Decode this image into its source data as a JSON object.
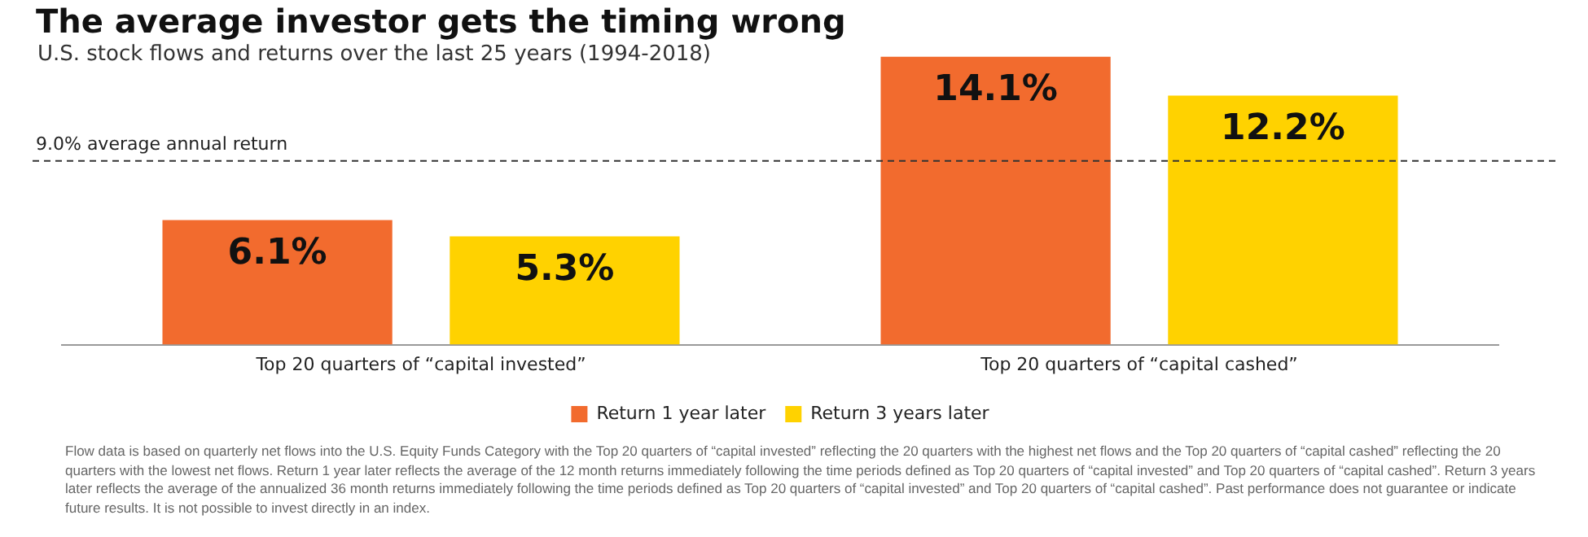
{
  "chart_data": {
    "type": "bar",
    "title": "The average investor gets the timing wrong",
    "subtitle": "U.S. stock flows and returns over the last 25 years (1994-2018)",
    "categories": [
      "Top 20 quarters of “capital invested”",
      "Top 20 quarters of “capital cashed”"
    ],
    "series": [
      {
        "name": "Return 1 year later",
        "color": "#f26b2e",
        "values": [
          6.1,
          14.1
        ],
        "value_labels": [
          "6.1%",
          "14.1%"
        ]
      },
      {
        "name": "Return 3 years later",
        "color": "#ffd200",
        "values": [
          5.3,
          12.2
        ],
        "value_labels": [
          "5.3%",
          "12.2%"
        ]
      }
    ],
    "ref_lines": [
      {
        "axis": "y",
        "value": 9.0,
        "label": "9.0% average annual return",
        "line_style": "dashed",
        "color": "#333333"
      }
    ],
    "legend": "bottom",
    "grid": false,
    "annotations": [
      "Flow data is based on quarterly net flows into the U.S. Equity Funds Category with the Top 20 quarters of “capital invested” reflecting the 20 quarters with the highest net flows and the Top 20 quarters of “capital cashed” reflecting the 20 quarters with the lowest net flows. Return 1 year later reflects the average of the 12 month returns immediately following the time periods defined as Top 20 quarters of “capital invested” and Top 20 quarters of “capital cashed”. Return 3 years later reflects the average of the annualized 36 month returns immediately following the time periods defined as Top 20 quarters of “capital invested” and Top 20 quarters of “capital cashed”. Past performance does not guarantee or indicate future results. It is not possible to invest directly in an index."
    ]
  }
}
